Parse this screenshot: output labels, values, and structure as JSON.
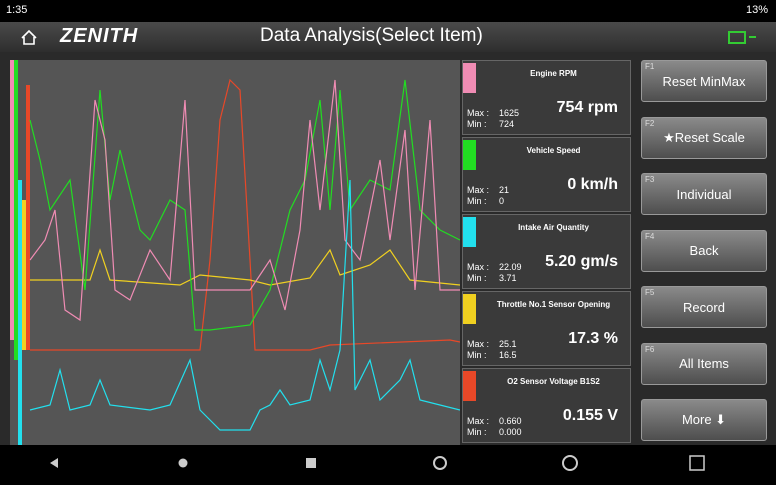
{
  "status_bar": {
    "time": "1:35",
    "battery": "13%"
  },
  "header": {
    "logo": "ZENITH",
    "title": "Data Analysis(Select Item)"
  },
  "items": [
    {
      "name": "Engine RPM",
      "color": "#f08cb4",
      "max": "1625",
      "min": "724",
      "value": "754 rpm"
    },
    {
      "name": "Vehicle Speed",
      "color": "#22dd22",
      "max": "21",
      "min": "0",
      "value": "0 km/h"
    },
    {
      "name": "Intake Air Quantity",
      "color": "#22e0ee",
      "max": "22.09",
      "min": "3.71",
      "value": "5.20 gm/s"
    },
    {
      "name": "Throttle No.1 Sensor Opening",
      "color": "#f0d020",
      "max": "25.1",
      "min": "16.5",
      "value": "17.3 %"
    },
    {
      "name": "O2 Sensor Voltage B1S2",
      "color": "#e84828",
      "max": "0.660",
      "min": "0.000",
      "value": "0.155 V"
    }
  ],
  "max_label": "Max :",
  "min_label": "Min :",
  "buttons": [
    {
      "key": "F1",
      "label": "Reset MinMax"
    },
    {
      "key": "F2",
      "label": "★Reset Scale"
    },
    {
      "key": "F3",
      "label": "Individual"
    },
    {
      "key": "F4",
      "label": "Back"
    },
    {
      "key": "F5",
      "label": "Record"
    },
    {
      "key": "F6",
      "label": "All Items"
    },
    {
      "label": "More ⬇"
    }
  ]
}
